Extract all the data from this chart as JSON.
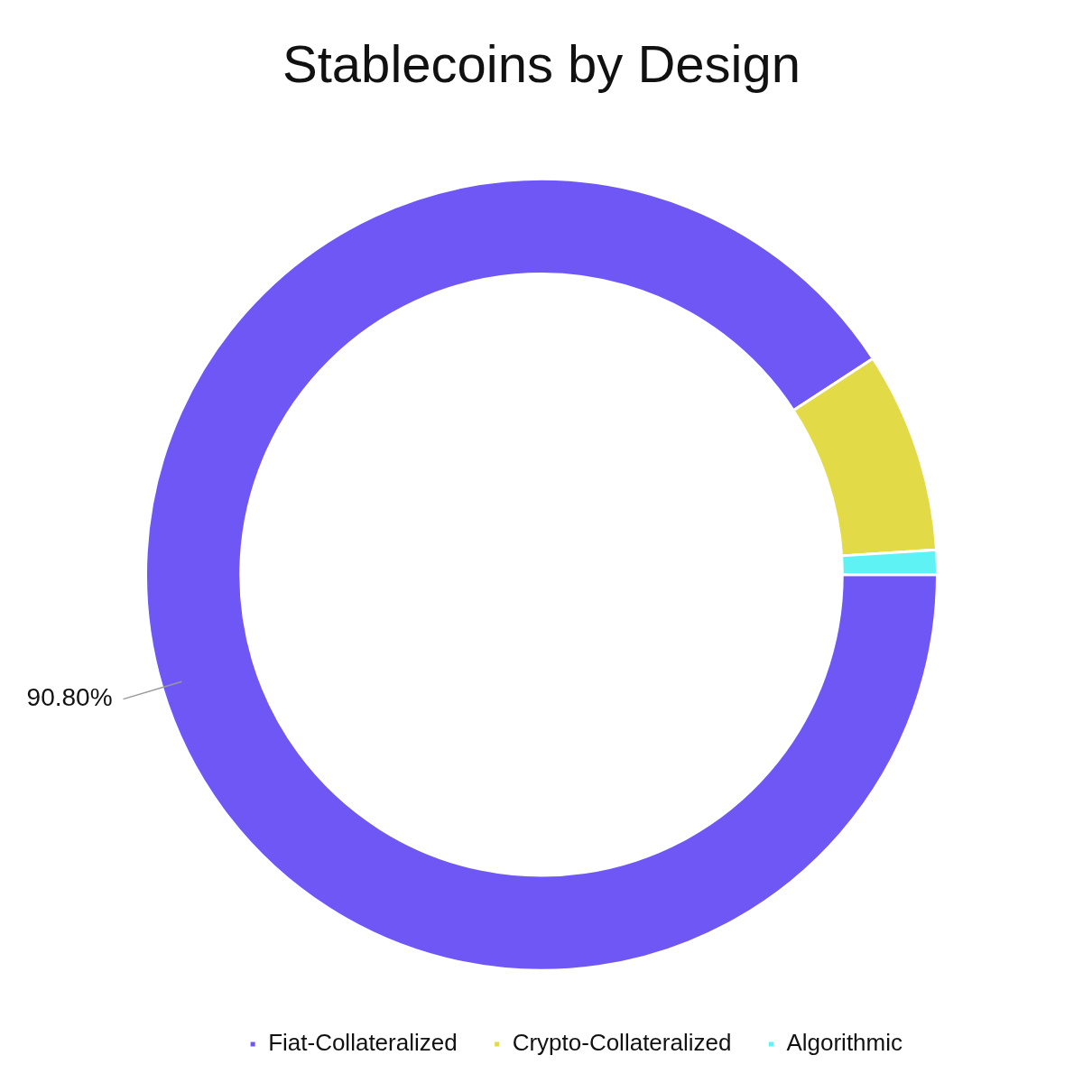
{
  "chart_data": {
    "type": "donut",
    "title": "Stablecoins by Design",
    "categories": [
      "Fiat-Collateralized",
      "Crypto-Collateralized",
      "Algorithmic"
    ],
    "values": [
      90.8,
      8.2,
      1.0
    ],
    "colors": [
      "#6e57f5",
      "#e3da47",
      "#5ef2f5"
    ],
    "value_labels": [
      "90.80%",
      null,
      null
    ],
    "legend": "bottom"
  }
}
